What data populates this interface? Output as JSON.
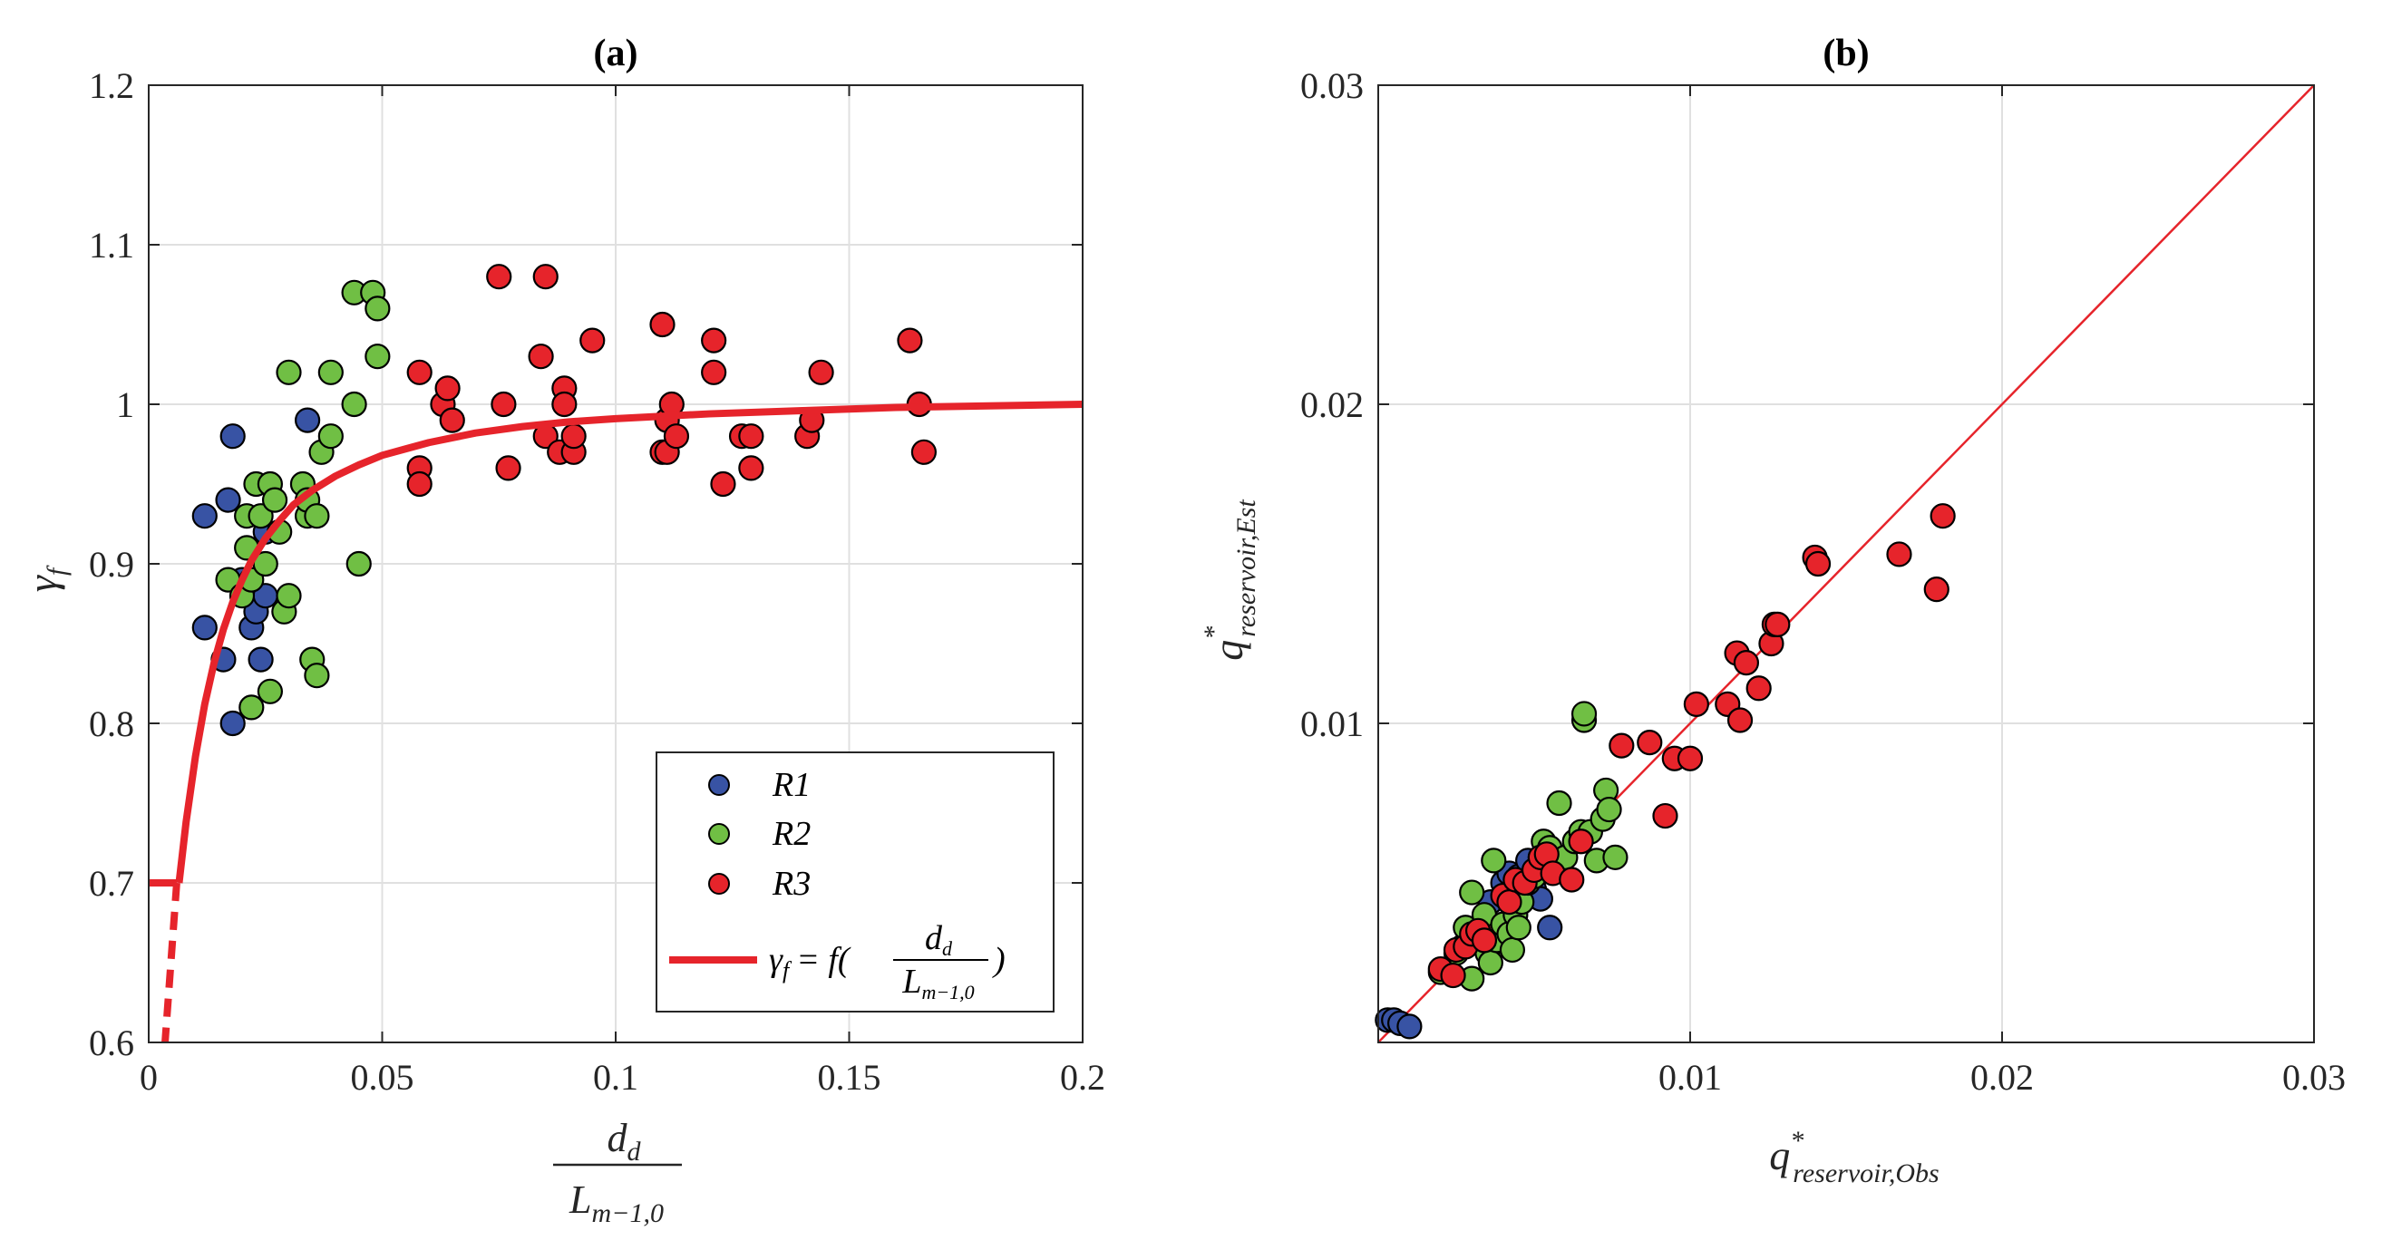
{
  "chart_data": [
    {
      "type": "scatter",
      "title": "(a)",
      "xlabel_numerator": "d",
      "xlabel_numerator_sub": "d",
      "xlabel_denominator": "L",
      "xlabel_denominator_sub": "m−1,0",
      "ylabel": "γ",
      "ylabel_sub": "f",
      "xlim": [
        0,
        0.2
      ],
      "ylim": [
        0.6,
        1.2
      ],
      "xticks": [
        "0",
        "0.05",
        "0.1",
        "0.15",
        "0.2"
      ],
      "xtick_values": [
        0,
        0.05,
        0.1,
        0.15,
        0.2
      ],
      "yticks": [
        "0.6",
        "0.7",
        "0.8",
        "0.9",
        "1",
        "1.1",
        "1.2"
      ],
      "ytick_values": [
        0.6,
        0.7,
        0.8,
        0.9,
        1.0,
        1.1,
        1.2
      ],
      "grid": true,
      "legend_position": "bottom-right",
      "series": [
        {
          "name": "R1",
          "color": "#3853a4",
          "points": [
            [
              0.012,
              0.93
            ],
            [
              0.012,
              0.86
            ],
            [
              0.016,
              0.84
            ],
            [
              0.017,
              0.94
            ],
            [
              0.018,
              0.98
            ],
            [
              0.018,
              0.8
            ],
            [
              0.02,
              0.89
            ],
            [
              0.022,
              0.86
            ],
            [
              0.023,
              0.87
            ],
            [
              0.024,
              0.84
            ],
            [
              0.025,
              0.88
            ],
            [
              0.025,
              0.92
            ],
            [
              0.034,
              0.99
            ]
          ]
        },
        {
          "name": "R2",
          "color": "#70bf44",
          "points": [
            [
              0.017,
              0.89
            ],
            [
              0.02,
              0.88
            ],
            [
              0.021,
              0.91
            ],
            [
              0.021,
              0.93
            ],
            [
              0.022,
              0.89
            ],
            [
              0.022,
              0.81
            ],
            [
              0.023,
              0.95
            ],
            [
              0.024,
              0.93
            ],
            [
              0.025,
              0.9
            ],
            [
              0.026,
              0.95
            ],
            [
              0.026,
              0.82
            ],
            [
              0.027,
              0.94
            ],
            [
              0.028,
              0.92
            ],
            [
              0.029,
              0.87
            ],
            [
              0.03,
              0.88
            ],
            [
              0.03,
              1.02
            ],
            [
              0.033,
              0.95
            ],
            [
              0.034,
              0.93
            ],
            [
              0.034,
              0.94
            ],
            [
              0.035,
              0.84
            ],
            [
              0.036,
              0.93
            ],
            [
              0.036,
              0.83
            ],
            [
              0.037,
              0.97
            ],
            [
              0.039,
              0.98
            ],
            [
              0.039,
              1.02
            ],
            [
              0.044,
              1.07
            ],
            [
              0.044,
              1.0
            ],
            [
              0.045,
              0.9
            ],
            [
              0.048,
              1.07
            ],
            [
              0.049,
              1.06
            ],
            [
              0.049,
              1.03
            ]
          ]
        },
        {
          "name": "R3",
          "color": "#e6242b",
          "points": [
            [
              0.058,
              1.02
            ],
            [
              0.058,
              0.96
            ],
            [
              0.058,
              0.95
            ],
            [
              0.063,
              1.0
            ],
            [
              0.064,
              1.01
            ],
            [
              0.065,
              0.99
            ],
            [
              0.075,
              1.08
            ],
            [
              0.076,
              1.0
            ],
            [
              0.077,
              0.96
            ],
            [
              0.084,
              1.03
            ],
            [
              0.085,
              1.08
            ],
            [
              0.085,
              0.98
            ],
            [
              0.088,
              0.97
            ],
            [
              0.089,
              1.01
            ],
            [
              0.089,
              1.0
            ],
            [
              0.091,
              0.97
            ],
            [
              0.091,
              0.98
            ],
            [
              0.095,
              1.04
            ],
            [
              0.11,
              1.05
            ],
            [
              0.11,
              0.97
            ],
            [
              0.111,
              0.97
            ],
            [
              0.111,
              0.99
            ],
            [
              0.112,
              1.0
            ],
            [
              0.113,
              0.98
            ],
            [
              0.121,
              1.04
            ],
            [
              0.121,
              1.02
            ],
            [
              0.123,
              0.95
            ],
            [
              0.127,
              0.98
            ],
            [
              0.129,
              0.98
            ],
            [
              0.129,
              0.96
            ],
            [
              0.141,
              0.98
            ],
            [
              0.142,
              0.99
            ],
            [
              0.144,
              1.02
            ],
            [
              0.163,
              1.04
            ],
            [
              0.165,
              1.0
            ],
            [
              0.166,
              0.97
            ]
          ]
        },
        {
          "name": "γ",
          "name_sub": "f",
          "name_rhs": "= f(",
          "name_frac_num": "d",
          "name_frac_num_sub": "d",
          "name_frac_den": "L",
          "name_frac_den_sub": "m−1,0",
          "name_close": ")",
          "type": "line",
          "color": "#e6242b",
          "x": [
            0.0065,
            0.008,
            0.01,
            0.012,
            0.014,
            0.016,
            0.018,
            0.02,
            0.022,
            0.025,
            0.028,
            0.031,
            0.035,
            0.04,
            0.045,
            0.05,
            0.055,
            0.06,
            0.07,
            0.08,
            0.09,
            0.1,
            0.12,
            0.14,
            0.16,
            0.18,
            0.2
          ],
          "y": [
            0.7,
            0.738,
            0.779,
            0.812,
            0.838,
            0.859,
            0.876,
            0.89,
            0.902,
            0.916,
            0.927,
            0.937,
            0.946,
            0.955,
            0.962,
            0.968,
            0.972,
            0.976,
            0.982,
            0.986,
            0.989,
            0.991,
            0.994,
            0.996,
            0.998,
            0.999,
            1.0
          ],
          "flat_segment": {
            "x": [
              0,
              0.006
            ],
            "y": [
              0.7,
              0.7
            ]
          },
          "dashed_segment": {
            "x": [
              0.006,
              0.0035
            ],
            "y": [
              0.7,
              0.6
            ]
          }
        }
      ]
    },
    {
      "type": "scatter",
      "title": "(b)",
      "xlabel": "q",
      "xlabel_sup": "*",
      "xlabel_sub": "reservoir,Obs",
      "ylabel": "q",
      "ylabel_sup": "*",
      "ylabel_sub": "reservoir,Est",
      "xlim": [
        0,
        0.03
      ],
      "ylim": [
        0,
        0.03
      ],
      "xticks": [
        "0.01",
        "0.02",
        "0.03"
      ],
      "xtick_values": [
        0.01,
        0.02,
        0.03
      ],
      "yticks": [
        "0.01",
        "0.02",
        "0.03"
      ],
      "ytick_values": [
        0.01,
        0.02,
        0.03
      ],
      "grid": true,
      "reference_line": {
        "x": [
          0,
          0.03
        ],
        "y": [
          0,
          0.03
        ],
        "color": "#e6242b"
      },
      "series": [
        {
          "name": "R1",
          "color": "#3853a4",
          "points": [
            [
              0.0003,
              0.0007
            ],
            [
              0.0005,
              0.0007
            ],
            [
              0.0007,
              0.0006
            ],
            [
              0.001,
              0.0005
            ],
            [
              0.0036,
              0.0044
            ],
            [
              0.004,
              0.005
            ],
            [
              0.0042,
              0.0053
            ],
            [
              0.0045,
              0.0052
            ],
            [
              0.0048,
              0.0057
            ],
            [
              0.005,
              0.0048
            ],
            [
              0.0052,
              0.0045
            ],
            [
              0.0055,
              0.0036
            ]
          ]
        },
        {
          "name": "R2",
          "color": "#70bf44",
          "points": [
            [
              0.002,
              0.0022
            ],
            [
              0.0025,
              0.0028
            ],
            [
              0.0027,
              0.003
            ],
            [
              0.0028,
              0.0036
            ],
            [
              0.003,
              0.002
            ],
            [
              0.003,
              0.0047
            ],
            [
              0.0032,
              0.0033
            ],
            [
              0.0034,
              0.004
            ],
            [
              0.0035,
              0.0028
            ],
            [
              0.0036,
              0.0025
            ],
            [
              0.0037,
              0.0057
            ],
            [
              0.0038,
              0.0032
            ],
            [
              0.004,
              0.0037
            ],
            [
              0.0042,
              0.0034
            ],
            [
              0.0043,
              0.0029
            ],
            [
              0.0044,
              0.004
            ],
            [
              0.0045,
              0.0036
            ],
            [
              0.0046,
              0.0044
            ],
            [
              0.0048,
              0.005
            ],
            [
              0.005,
              0.0052
            ],
            [
              0.0052,
              0.0058
            ],
            [
              0.0053,
              0.0063
            ],
            [
              0.0055,
              0.0061
            ],
            [
              0.0058,
              0.0075
            ],
            [
              0.006,
              0.0058
            ],
            [
              0.0063,
              0.0063
            ],
            [
              0.0065,
              0.0066
            ],
            [
              0.0066,
              0.0101
            ],
            [
              0.0066,
              0.0103
            ],
            [
              0.0068,
              0.0066
            ],
            [
              0.007,
              0.0057
            ],
            [
              0.0072,
              0.007
            ],
            [
              0.0073,
              0.0079
            ],
            [
              0.0074,
              0.0073
            ],
            [
              0.0076,
              0.0058
            ]
          ]
        },
        {
          "name": "R3",
          "color": "#e6242b",
          "points": [
            [
              0.002,
              0.0023
            ],
            [
              0.0024,
              0.0021
            ],
            [
              0.0025,
              0.0029
            ],
            [
              0.0028,
              0.003
            ],
            [
              0.003,
              0.0034
            ],
            [
              0.0032,
              0.0035
            ],
            [
              0.0034,
              0.0032
            ],
            [
              0.004,
              0.0046
            ],
            [
              0.0042,
              0.0044
            ],
            [
              0.0044,
              0.0051
            ],
            [
              0.0047,
              0.005
            ],
            [
              0.005,
              0.0054
            ],
            [
              0.0052,
              0.0058
            ],
            [
              0.0054,
              0.0059
            ],
            [
              0.0056,
              0.0053
            ],
            [
              0.0062,
              0.0051
            ],
            [
              0.0065,
              0.0063
            ],
            [
              0.0078,
              0.0093
            ],
            [
              0.0087,
              0.0094
            ],
            [
              0.0092,
              0.0071
            ],
            [
              0.0095,
              0.0089
            ],
            [
              0.01,
              0.0089
            ],
            [
              0.0102,
              0.0106
            ],
            [
              0.0112,
              0.0106
            ],
            [
              0.0115,
              0.0122
            ],
            [
              0.0116,
              0.0101
            ],
            [
              0.0118,
              0.0119
            ],
            [
              0.0122,
              0.0111
            ],
            [
              0.0126,
              0.0125
            ],
            [
              0.0127,
              0.0131
            ],
            [
              0.0128,
              0.0131
            ],
            [
              0.014,
              0.0152
            ],
            [
              0.0141,
              0.015
            ],
            [
              0.0167,
              0.0153
            ],
            [
              0.0179,
              0.0142
            ],
            [
              0.0181,
              0.0165
            ]
          ]
        }
      ]
    }
  ]
}
